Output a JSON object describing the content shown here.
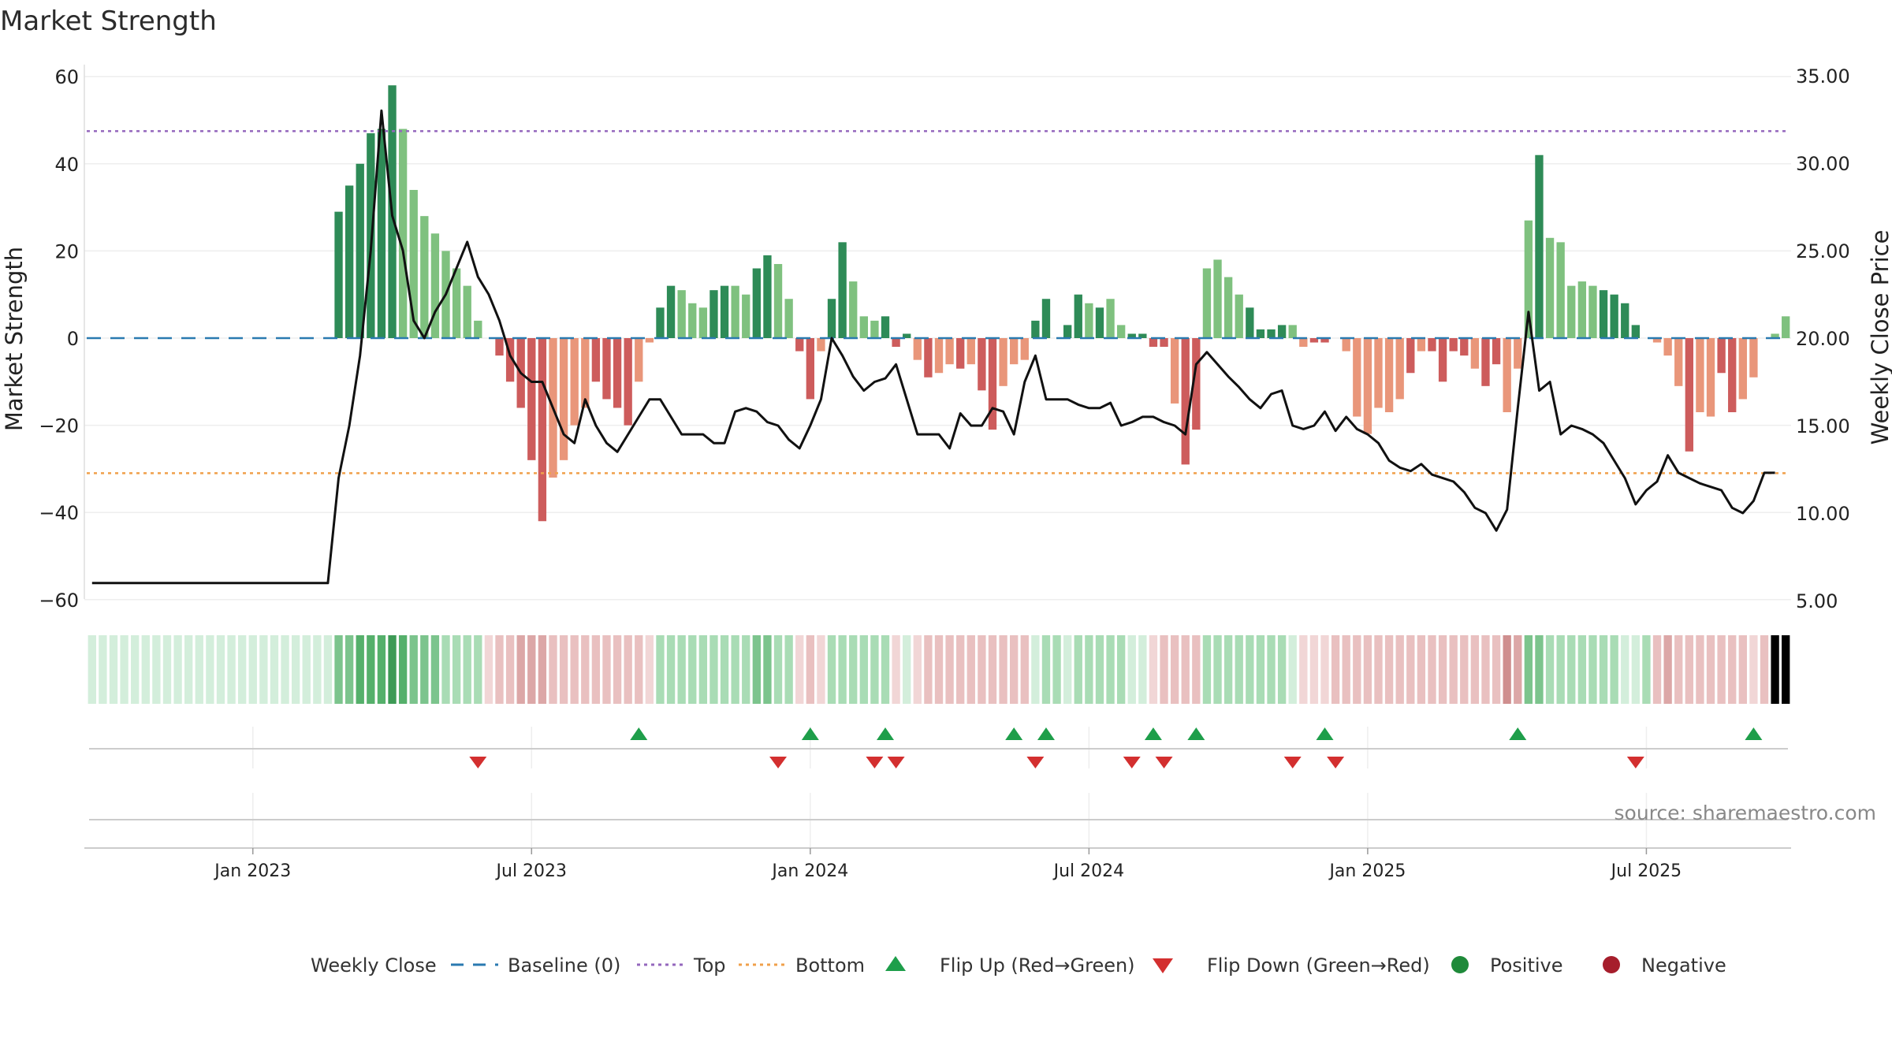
{
  "title": "Market Strength",
  "source_text": "source: sharemaestro.com",
  "colors": {
    "strong_green": "#2e8b57",
    "light_green": "#7fc17f",
    "strong_red": "#cd5c5c",
    "light_red": "#e9967a",
    "price_line": "#111111",
    "baseline": "#2a7ab0",
    "top": "#9467bd",
    "bottom": "#f0a04b",
    "flip_up": "#1e9e4a",
    "flip_down": "#d32f2f",
    "positive": "#1f8a3a",
    "negative": "#a61e2c"
  },
  "legend": [
    {
      "key": "weekly_close",
      "label": "Weekly Close",
      "icon": "solid-line"
    },
    {
      "key": "baseline",
      "label": "Baseline (0)",
      "icon": "dashed-line"
    },
    {
      "key": "top",
      "label": "Top",
      "icon": "dotted-line"
    },
    {
      "key": "bottom",
      "label": "Bottom",
      "icon": "dotted-line"
    },
    {
      "key": "flip_up",
      "label": "Flip Up (Red→Green)",
      "icon": "triangle-up"
    },
    {
      "key": "flip_down",
      "label": "Flip Down (Green→Red)",
      "icon": "triangle-down"
    },
    {
      "key": "positive",
      "label": "Positive",
      "icon": "circle"
    },
    {
      "key": "negative",
      "label": "Negative",
      "icon": "circle"
    }
  ],
  "chart_data": {
    "type": "bar",
    "ylabel": "Market Strength",
    "y2label": "Weekly Close Price",
    "ylim": [
      -62,
      62
    ],
    "y2lim": [
      5,
      35
    ],
    "yticks": [
      60,
      40,
      20,
      0,
      -20,
      -40,
      -60
    ],
    "y2ticks": [
      "35.00",
      "30.00",
      "25.00",
      "20.00",
      "15.00",
      "10.00",
      "5.00"
    ],
    "top_level": 47.5,
    "bottom_level": -31,
    "date_ticks": [
      {
        "label": "Jan 2023",
        "week": 15
      },
      {
        "label": "Jul 2023",
        "week": 41
      },
      {
        "label": "Jan 2024",
        "week": 67
      },
      {
        "label": "Jul 2024",
        "week": 93
      },
      {
        "label": "Jan 2025",
        "week": 119
      },
      {
        "label": "Jul 2025",
        "week": 145
      }
    ],
    "strength": [
      0,
      0,
      0,
      0,
      0,
      0,
      0,
      0,
      0,
      0,
      0,
      0,
      0,
      0,
      0,
      0,
      0,
      0,
      0,
      0,
      0,
      0,
      0,
      29,
      35,
      40,
      47,
      48,
      58,
      48,
      34,
      28,
      24,
      20,
      16,
      12,
      4,
      0,
      -4,
      -10,
      -16,
      -28,
      -42,
      -32,
      -28,
      -20,
      -16,
      -10,
      -14,
      -16,
      -20,
      -10,
      -1,
      7,
      12,
      11,
      8,
      7,
      11,
      12,
      12,
      10,
      16,
      19,
      17,
      9,
      -3,
      -14,
      -3,
      9,
      22,
      13,
      5,
      4,
      5,
      -2,
      1,
      -5,
      -9,
      -8,
      -6,
      -7,
      -6,
      -12,
      -21,
      -11,
      -6,
      -5,
      4,
      9,
      0,
      3,
      10,
      8,
      7,
      9,
      3,
      1,
      1,
      -2,
      -2,
      -15,
      -29,
      -21,
      16,
      18,
      14,
      10,
      7,
      2,
      2,
      3,
      3,
      -2,
      -1,
      -1,
      0,
      -3,
      -18,
      -22,
      -16,
      -17,
      -14,
      -8,
      -3,
      -3,
      -10,
      -3,
      -4,
      -7,
      -11,
      -6,
      -17,
      -7,
      27,
      42,
      23,
      22,
      12,
      13,
      12,
      11,
      10,
      8,
      3,
      0,
      -1,
      -4,
      -11,
      -26,
      -17,
      -18,
      -8,
      -17,
      -14,
      -9,
      0,
      1,
      5
    ],
    "tone": [
      0,
      0,
      0,
      0,
      0,
      0,
      0,
      0,
      0,
      0,
      0,
      0,
      0,
      0,
      0,
      0,
      0,
      0,
      0,
      0,
      0,
      0,
      0,
      1,
      1,
      1,
      1,
      1,
      1,
      0,
      0,
      0,
      0,
      0,
      0,
      0,
      0,
      0,
      1,
      1,
      1,
      1,
      1,
      0,
      0,
      0,
      0,
      1,
      1,
      1,
      1,
      0,
      0,
      1,
      1,
      0,
      0,
      0,
      1,
      1,
      0,
      0,
      1,
      1,
      0,
      0,
      1,
      1,
      0,
      1,
      1,
      0,
      0,
      0,
      1,
      1,
      1,
      0,
      1,
      0,
      0,
      1,
      0,
      1,
      1,
      0,
      0,
      0,
      1,
      1,
      0,
      1,
      1,
      0,
      1,
      0,
      0,
      1,
      1,
      1,
      1,
      0,
      1,
      1,
      0,
      0,
      0,
      0,
      1,
      1,
      1,
      1,
      0,
      0,
      1,
      1,
      1,
      0,
      0,
      0,
      0,
      0,
      0,
      1,
      0,
      1,
      1,
      1,
      1,
      0,
      1,
      1,
      0,
      0,
      0,
      1,
      0,
      0,
      0,
      0,
      0,
      1,
      1,
      1,
      1,
      0,
      0,
      0,
      0,
      1,
      0,
      0,
      1,
      1
    ],
    "close": [
      6,
      6,
      6,
      6,
      6,
      6,
      6,
      6,
      6,
      6,
      6,
      6,
      6,
      6,
      6,
      6,
      6,
      6,
      6,
      6,
      6,
      6,
      6,
      12,
      15,
      19,
      25,
      33,
      27,
      25,
      21,
      20,
      21.5,
      22.5,
      24,
      25.5,
      23.5,
      22.5,
      21,
      19,
      18,
      17.5,
      17.5,
      16,
      14.5,
      14,
      16.5,
      15,
      14,
      13.5,
      14.5,
      15.5,
      16.5,
      16.5,
      15.5,
      14.5,
      14.5,
      14.5,
      14,
      14,
      15.8,
      16,
      15.8,
      15.2,
      15,
      14.2,
      13.7,
      15,
      16.5,
      20,
      19,
      17.8,
      17,
      17.5,
      17.7,
      18.5,
      16.5,
      14.5,
      14.5,
      14.5,
      13.7,
      15.7,
      15,
      15,
      16,
      15.8,
      14.5,
      17.5,
      19,
      16.5,
      16.5,
      16.5,
      16.2,
      16,
      16,
      16.3,
      15,
      15.2,
      15.5,
      15.5,
      15.2,
      15,
      14.5,
      18.5,
      19.2,
      18.5,
      17.8,
      17.2,
      16.5,
      16,
      16.8,
      17,
      15,
      14.8,
      15,
      15.8,
      14.7,
      15.5,
      14.8,
      14.5,
      14,
      13,
      12.6,
      12.4,
      12.8,
      12.2,
      12,
      11.8,
      11.2,
      10.3,
      10,
      9,
      10.2,
      16,
      21.5,
      17,
      17.5,
      14.5,
      15,
      14.8,
      14.5,
      14,
      13,
      12,
      10.5,
      11.3,
      11.8,
      13.3,
      12.3,
      12,
      11.7,
      11.5,
      11.3,
      10.3,
      10,
      10.7,
      12.3,
      12.3
    ],
    "status_level": [
      0,
      0,
      0,
      0,
      0,
      0,
      0,
      0,
      0,
      0,
      0,
      0,
      0,
      0,
      0,
      0,
      0,
      0,
      0,
      0,
      0,
      0,
      0,
      2,
      2,
      3,
      3,
      3,
      4,
      3,
      2,
      2,
      2,
      1,
      1,
      1,
      1,
      0,
      1,
      1,
      2,
      2,
      2,
      1,
      1,
      1,
      1,
      1,
      1,
      1,
      1,
      1,
      0,
      1,
      1,
      1,
      1,
      1,
      1,
      1,
      1,
      1,
      2,
      2,
      1,
      1,
      0,
      1,
      0,
      1,
      1,
      1,
      1,
      1,
      1,
      0,
      0,
      0,
      1,
      1,
      1,
      1,
      1,
      1,
      1,
      1,
      1,
      1,
      0,
      1,
      1,
      0,
      1,
      1,
      1,
      1,
      1,
      0,
      0,
      0,
      1,
      1,
      1,
      1,
      1,
      1,
      1,
      1,
      1,
      1,
      1,
      1,
      0,
      0,
      0,
      0,
      1,
      1,
      1,
      1,
      1,
      1,
      1,
      1,
      1,
      1,
      1,
      1,
      1,
      1,
      1,
      1,
      3,
      2,
      2,
      2,
      1,
      1,
      1,
      1,
      1,
      1,
      1,
      0,
      0,
      1,
      1,
      2,
      1,
      1,
      1,
      1,
      1,
      1,
      1,
      0,
      1
    ],
    "flips_up": [
      51,
      67,
      74,
      86,
      89,
      99,
      103,
      115,
      133,
      155
    ],
    "flips_down": [
      36,
      64,
      73,
      75,
      88,
      97,
      100,
      112,
      116,
      144
    ]
  }
}
